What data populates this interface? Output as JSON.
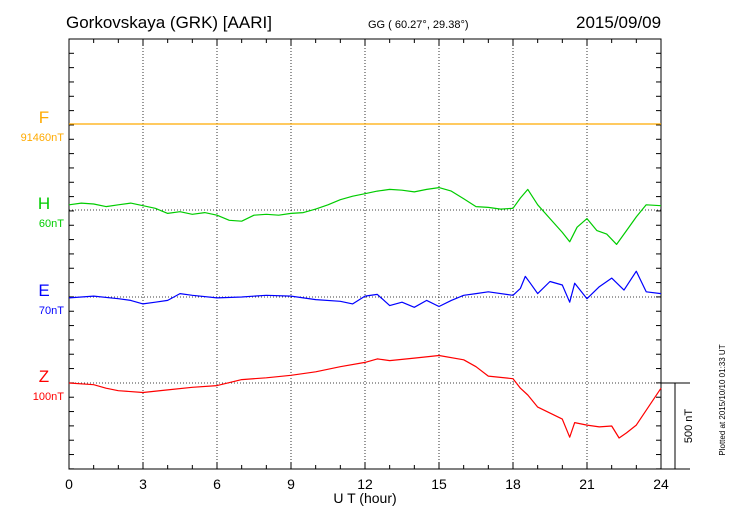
{
  "header": {
    "station": "Gorkovskaya (GRK)  [AARI]",
    "coords": "GG ( 60.27°,  29.38°)",
    "date": "2015/09/09"
  },
  "side_note": "Plotted at 2015/10/10 01:33 UT",
  "scale_bar_label": "500 nT",
  "chart_data": {
    "type": "line",
    "title": "Gorkovskaya (GRK)  [AARI]",
    "xlabel": "U T (hour)",
    "ylabel": "",
    "xlim": [
      0,
      24
    ],
    "xticks": [
      0,
      3,
      6,
      9,
      12,
      15,
      18,
      21,
      24
    ],
    "grid": true,
    "series": [
      {
        "name": "F",
        "base_label": "91460nT",
        "color": "#ffaa00",
        "x": [
          0,
          24
        ],
        "y": [
          0,
          0
        ]
      },
      {
        "name": "H",
        "base_label": "60nT",
        "color": "#00cc00",
        "x": [
          0,
          0.5,
          1,
          1.5,
          2,
          2.5,
          3,
          3.5,
          4,
          4.5,
          5,
          5.5,
          6,
          6.5,
          7,
          7.5,
          8,
          8.5,
          9,
          9.5,
          10,
          10.5,
          11,
          11.5,
          12,
          12.5,
          13,
          13.5,
          14,
          14.5,
          15,
          15.5,
          16,
          16.5,
          17,
          17.5,
          18,
          18.3,
          18.6,
          19,
          19.5,
          20,
          20.3,
          20.6,
          21,
          21.4,
          21.8,
          22.2,
          22.6,
          23,
          23.4,
          24
        ],
        "y": [
          30,
          40,
          35,
          20,
          30,
          40,
          25,
          10,
          -20,
          -10,
          -25,
          -15,
          -30,
          -60,
          -65,
          -30,
          -25,
          -30,
          -20,
          -15,
          5,
          30,
          60,
          80,
          95,
          110,
          120,
          115,
          105,
          120,
          130,
          110,
          65,
          20,
          15,
          5,
          10,
          70,
          120,
          30,
          -50,
          -130,
          -185,
          -100,
          -50,
          -120,
          -140,
          -200,
          -120,
          -40,
          30,
          25
        ]
      },
      {
        "name": "E",
        "base_label": "70nT",
        "color": "#0000ff",
        "x": [
          0,
          1,
          2,
          2.5,
          3,
          3.5,
          4,
          4.5,
          5,
          6,
          7,
          8,
          9,
          10,
          11,
          11.5,
          12,
          12.5,
          13,
          13.5,
          14,
          14.5,
          15,
          15.5,
          16,
          16.5,
          17,
          18,
          18.3,
          18.5,
          18.7,
          19,
          19.5,
          20,
          20.3,
          20.5,
          21,
          21.5,
          22,
          22.5,
          23,
          23.4,
          24
        ],
        "y": [
          -5,
          5,
          -10,
          -20,
          -40,
          -30,
          -20,
          20,
          10,
          -5,
          0,
          10,
          5,
          -15,
          -25,
          -40,
          5,
          15,
          -50,
          -30,
          -60,
          -20,
          -55,
          -20,
          10,
          20,
          30,
          10,
          50,
          120,
          80,
          20,
          90,
          70,
          -30,
          80,
          -10,
          60,
          110,
          40,
          150,
          30,
          20
        ]
      },
      {
        "name": "Z",
        "base_label": "100nT",
        "color": "#ff0000",
        "x": [
          0,
          1,
          1.5,
          2,
          3,
          4,
          5,
          6,
          7,
          8,
          9,
          10,
          11,
          12,
          12.5,
          13,
          14,
          15,
          16,
          16.5,
          17,
          18,
          18.3,
          18.6,
          19,
          19.5,
          20,
          20.3,
          20.5,
          21,
          21.5,
          22,
          22.3,
          22.6,
          23,
          24
        ],
        "y": [
          0,
          -10,
          -30,
          -45,
          -55,
          -40,
          -25,
          -15,
          20,
          30,
          45,
          65,
          95,
          120,
          140,
          130,
          145,
          160,
          135,
          95,
          40,
          25,
          -30,
          -70,
          -140,
          -175,
          -210,
          -315,
          -230,
          -245,
          -255,
          -250,
          -320,
          -290,
          -245,
          -30
        ]
      }
    ],
    "scale_bar_nT": 500
  }
}
